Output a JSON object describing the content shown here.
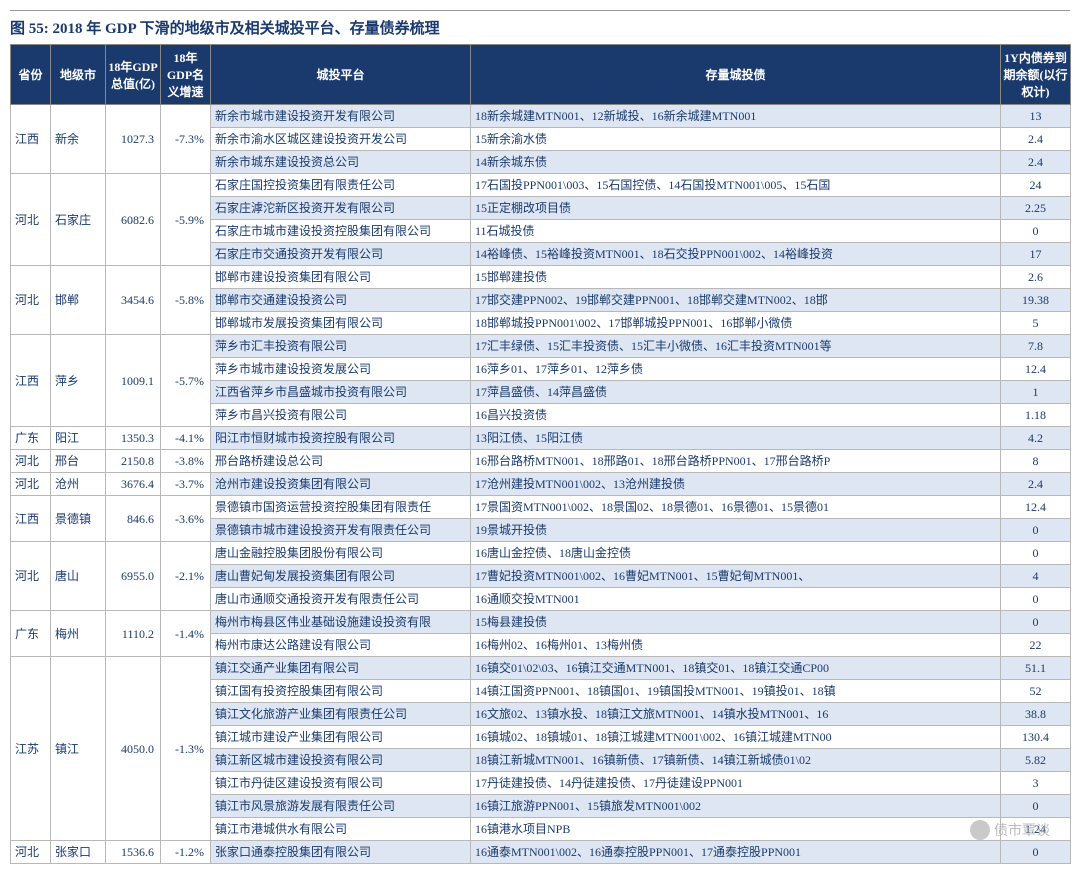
{
  "title": "图 55:  2018 年 GDP 下滑的地级市及相关城投平台、存量债券梳理",
  "colors": {
    "header_bg": "#1a3a6e",
    "header_fg": "#ffffff",
    "text": "#1a3a6e",
    "alt_row_bg": "#dde6f2",
    "border": "#b8b8b8",
    "bg": "#ffffff"
  },
  "columns": [
    "省份",
    "地级市",
    "18年GDP总值(亿)",
    "18年GDP名义增速",
    "城投平台",
    "存量城投债",
    "1Y内债券到期余额(以行权计)"
  ],
  "groups": [
    {
      "province": "江西",
      "city": "新余",
      "gdp": "1027.3",
      "growth": "-7.3%",
      "rows": [
        {
          "platform": "新余市城市建设投资开发有限公司",
          "bonds": "18新余城建MTN001、12新城投、16新余城建MTN001",
          "amount": "13",
          "alt": true
        },
        {
          "platform": "新余市渝水区城区建设投资开发公司",
          "bonds": "15新余渝水债",
          "amount": "2.4",
          "alt": false
        },
        {
          "platform": "新余市城东建设投资总公司",
          "bonds": "14新余城东债",
          "amount": "2.4",
          "alt": true
        }
      ]
    },
    {
      "province": "河北",
      "city": "石家庄",
      "gdp": "6082.6",
      "growth": "-5.9%",
      "rows": [
        {
          "platform": "石家庄国控投资集团有限责任公司",
          "bonds": "17石国投PPN001\\003、15石国控债、14石国投MTN001\\005、15石国",
          "amount": "24",
          "alt": false
        },
        {
          "platform": "石家庄滹沱新区投资开发有限公司",
          "bonds": "15正定棚改项目债",
          "amount": "2.25",
          "alt": true
        },
        {
          "platform": "石家庄市城市建设投资控股集团有限公司",
          "bonds": "11石城投债",
          "amount": "0",
          "alt": false
        },
        {
          "platform": "石家庄市交通投资开发有限公司",
          "bonds": "14裕峰债、15裕峰投资MTN001、18石交投PPN001\\002、14裕峰投资",
          "amount": "17",
          "alt": true
        }
      ]
    },
    {
      "province": "河北",
      "city": "邯郸",
      "gdp": "3454.6",
      "growth": "-5.8%",
      "rows": [
        {
          "platform": "邯郸市建设投资集团有限公司",
          "bonds": "15邯郸建投债",
          "amount": "2.6",
          "alt": false
        },
        {
          "platform": "邯郸市交通建设投资公司",
          "bonds": "17邯交建PPN002、19邯郸交建PPN001、18邯郸交建MTN002、18邯",
          "amount": "19.38",
          "alt": true
        },
        {
          "platform": "邯郸城市发展投资集团有限公司",
          "bonds": "18邯郸城投PPN001\\002、17邯郸城投PPN001、16邯郸小微债",
          "amount": "5",
          "alt": false
        }
      ]
    },
    {
      "province": "江西",
      "city": "萍乡",
      "gdp": "1009.1",
      "growth": "-5.7%",
      "rows": [
        {
          "platform": "萍乡市汇丰投资有限公司",
          "bonds": "17汇丰绿债、15汇丰投资债、15汇丰小微债、16汇丰投资MTN001等",
          "amount": "7.8",
          "alt": true
        },
        {
          "platform": "萍乡市城市建设投资发展公司",
          "bonds": "16萍乡01、17萍乡01、12萍乡债",
          "amount": "12.4",
          "alt": false
        },
        {
          "platform": "江西省萍乡市昌盛城市投资有限公司",
          "bonds": "17萍昌盛债、14萍昌盛债",
          "amount": "1",
          "alt": true
        },
        {
          "platform": "萍乡市昌兴投资有限公司",
          "bonds": "16昌兴投资债",
          "amount": "1.18",
          "alt": false
        }
      ]
    },
    {
      "province": "广东",
      "city": "阳江",
      "gdp": "1350.3",
      "growth": "-4.1%",
      "rows": [
        {
          "platform": "阳江市恒财城市投资控股有限公司",
          "bonds": "13阳江债、15阳江债",
          "amount": "4.2",
          "alt": true
        }
      ]
    },
    {
      "province": "河北",
      "city": "邢台",
      "gdp": "2150.8",
      "growth": "-3.8%",
      "rows": [
        {
          "platform": "邢台路桥建设总公司",
          "bonds": "16邢台路桥MTN001、18邢路01、18邢台路桥PPN001、17邢台路桥P",
          "amount": "8",
          "alt": false
        }
      ]
    },
    {
      "province": "河北",
      "city": "沧州",
      "gdp": "3676.4",
      "growth": "-3.7%",
      "rows": [
        {
          "platform": "沧州市建设投资集团有限公司",
          "bonds": "17沧州建投MTN001\\002、13沧州建投债",
          "amount": "2.4",
          "alt": true
        }
      ]
    },
    {
      "province": "江西",
      "city": "景德镇",
      "gdp": "846.6",
      "growth": "-3.6%",
      "rows": [
        {
          "platform": "景德镇市国资运营投资控股集团有限责任",
          "bonds": "17景国资MTN001\\002、18景国02、18景德01、16景德01、15景德01",
          "amount": "12.4",
          "alt": false
        },
        {
          "platform": "景德镇市城市建设投资开发有限责任公司",
          "bonds": "19景城开投债",
          "amount": "0",
          "alt": true
        }
      ]
    },
    {
      "province": "河北",
      "city": "唐山",
      "gdp": "6955.0",
      "growth": "-2.1%",
      "rows": [
        {
          "platform": "唐山金融控股集团股份有限公司",
          "bonds": "16唐山金控债、18唐山金控债",
          "amount": "0",
          "alt": false
        },
        {
          "platform": "唐山曹妃甸发展投资集团有限公司",
          "bonds": "17曹妃投资MTN001\\002、16曹妃MTN001、15曹妃甸MTN001、",
          "amount": "4",
          "alt": true
        },
        {
          "platform": "唐山市通顺交通投资开发有限责任公司",
          "bonds": "16通顺交投MTN001",
          "amount": "0",
          "alt": false
        }
      ]
    },
    {
      "province": "广东",
      "city": "梅州",
      "gdp": "1110.2",
      "growth": "-1.4%",
      "rows": [
        {
          "platform": "梅州市梅县区伟业基础设施建设投资有限",
          "bonds": "15梅县建投债",
          "amount": "0",
          "alt": true
        },
        {
          "platform": "梅州市康达公路建设有限公司",
          "bonds": "16梅州02、16梅州01、13梅州债",
          "amount": "22",
          "alt": false
        }
      ]
    },
    {
      "province": "江苏",
      "city": "镇江",
      "gdp": "4050.0",
      "growth": "-1.3%",
      "rows": [
        {
          "platform": "镇江交通产业集团有限公司",
          "bonds": "16镇交01\\02\\03、16镇江交通MTN001、18镇交01、18镇江交通CP00",
          "amount": "51.1",
          "alt": true
        },
        {
          "platform": "镇江国有投资控股集团有限公司",
          "bonds": "14镇江国资PPN001、18镇国01、19镇国投MTN001、19镇投01、18镇",
          "amount": "52",
          "alt": false
        },
        {
          "platform": "镇江文化旅游产业集团有限责任公司",
          "bonds": "16文旅02、13镇水投、18镇江文旅MTN001、14镇水投MTN001、16",
          "amount": "38.8",
          "alt": true
        },
        {
          "platform": "镇江城市建设产业集团有限公司",
          "bonds": "16镇城02、18镇城01、18镇江城建MTN001\\002、16镇江城建MTN00",
          "amount": "130.4",
          "alt": false
        },
        {
          "platform": "镇江新区城市建设投资有限公司",
          "bonds": "18镇江新城MTN001、16镇新债、17镇新债、14镇江新城债01\\02",
          "amount": "5.82",
          "alt": true
        },
        {
          "platform": "镇江市丹徒区建设投资有限公司",
          "bonds": "17丹徒建投债、14丹徒建投债、17丹徒建设PPN001",
          "amount": "3",
          "alt": false
        },
        {
          "platform": "镇江市风景旅游发展有限责任公司",
          "bonds": "16镇江旅游PPN001、15镇旅发MTN001\\002",
          "amount": "0",
          "alt": true
        },
        {
          "platform": "镇江市港城供水有限公司",
          "bonds": "16镇港水项目NPB",
          "amount": "1.24",
          "alt": false
        }
      ]
    },
    {
      "province": "河北",
      "city": "张家口",
      "gdp": "1536.6",
      "growth": "-1.2%",
      "rows": [
        {
          "platform": "张家口通泰控股集团有限公司",
          "bonds": "16通泰MTN001\\002、16通泰控股PPN001、17通泰控股PPN001",
          "amount": "0",
          "alt": true
        }
      ]
    }
  ],
  "watermark": "债市覃谈"
}
